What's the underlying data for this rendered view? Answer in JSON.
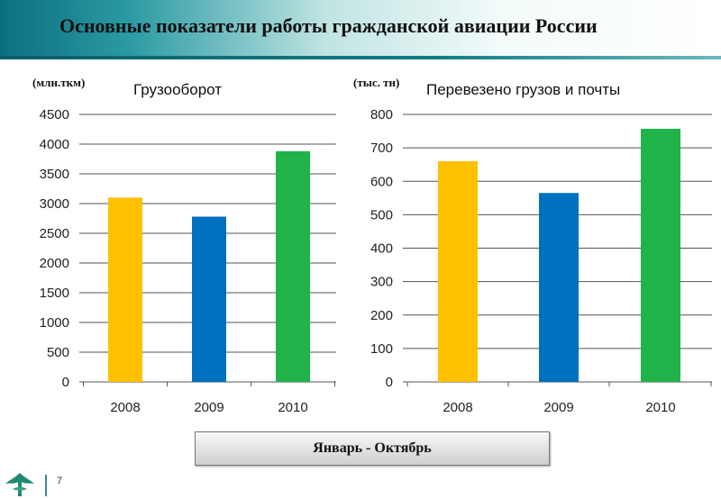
{
  "header": {
    "title": "Основные показатели работы гражданской авиации России"
  },
  "period_label": "Январь  -  Октябрь",
  "page_number": "7",
  "colors": {
    "bar_2008": "#ffc000",
    "bar_2009": "#0070c0",
    "bar_2010": "#1fb34a",
    "header_accent": "#0d6f7e"
  },
  "chart_data": [
    {
      "type": "bar",
      "title": "Грузооборот",
      "unit": "(млн.ткм)",
      "categories": [
        "2008",
        "2009",
        "2010"
      ],
      "values": [
        3100,
        2780,
        3880
      ],
      "ylim": [
        0,
        4500
      ],
      "yticks": [
        0,
        500,
        1000,
        1500,
        2000,
        2500,
        3000,
        3500,
        4000,
        4500
      ],
      "grid": true
    },
    {
      "type": "bar",
      "title": "Перевезено грузов и почты",
      "unit": "(тыс. тн)",
      "categories": [
        "2008",
        "2009",
        "2010"
      ],
      "values": [
        660,
        565,
        757
      ],
      "ylim": [
        0,
        800
      ],
      "yticks": [
        0,
        100,
        200,
        300,
        400,
        500,
        600,
        700,
        800
      ],
      "grid": true
    }
  ]
}
